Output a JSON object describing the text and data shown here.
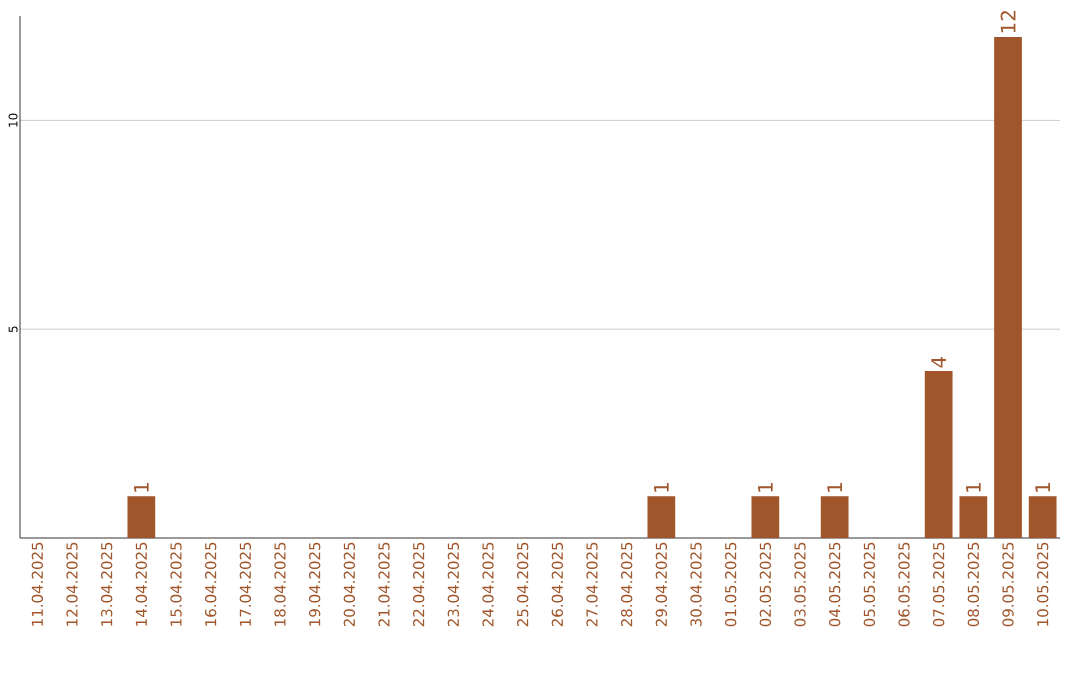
{
  "chart_data": {
    "type": "bar",
    "categories": [
      "11.04.2025",
      "12.04.2025",
      "13.04.2025",
      "14.04.2025",
      "15.04.2025",
      "16.04.2025",
      "17.04.2025",
      "18.04.2025",
      "19.04.2025",
      "20.04.2025",
      "21.04.2025",
      "22.04.2025",
      "23.04.2025",
      "24.04.2025",
      "25.04.2025",
      "26.04.2025",
      "27.04.2025",
      "28.04.2025",
      "29.04.2025",
      "30.04.2025",
      "01.05.2025",
      "02.05.2025",
      "03.05.2025",
      "04.05.2025",
      "05.05.2025",
      "06.05.2025",
      "07.05.2025",
      "08.05.2025",
      "09.05.2025",
      "10.05.2025"
    ],
    "values": [
      0,
      0,
      0,
      1,
      0,
      0,
      0,
      0,
      0,
      0,
      0,
      0,
      0,
      0,
      0,
      0,
      0,
      0,
      1,
      0,
      0,
      1,
      0,
      1,
      0,
      0,
      4,
      1,
      12,
      1
    ],
    "value_labels": [
      null,
      null,
      null,
      "1",
      null,
      null,
      null,
      null,
      null,
      null,
      null,
      null,
      null,
      null,
      null,
      null,
      null,
      null,
      "1",
      null,
      null,
      "1",
      null,
      "1",
      null,
      null,
      "4",
      "1",
      "12",
      "1"
    ],
    "color": "#a0552a",
    "ylim": [
      0,
      12.5
    ],
    "yticks": [
      5,
      10
    ],
    "grid": "y"
  }
}
